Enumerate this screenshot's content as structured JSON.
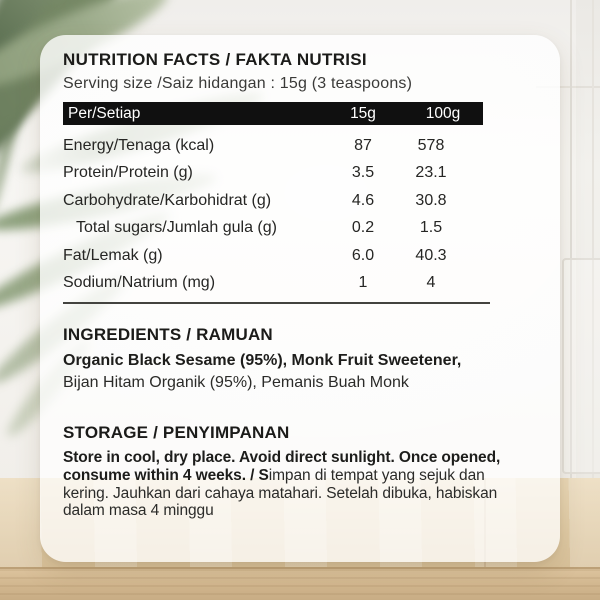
{
  "nutrition_facts": {
    "title": "NUTRITION FACTS / FAKTA NUTRISI",
    "serving_size": "Serving size /Saiz hidangan : 15g (3 teaspoons)",
    "table": {
      "header": {
        "per": "Per/Setiap",
        "col_15g": "15g",
        "col_100g": "100g"
      },
      "rows": [
        {
          "label": "Energy/Tenaga (kcal)",
          "per_15g": "87",
          "per_100g": "578"
        },
        {
          "label": "Protein/Protein (g)",
          "per_15g": "3.5",
          "per_100g": "23.1"
        },
        {
          "label": "Carbohydrate/Karbohidrat (g)",
          "per_15g": "4.6",
          "per_100g": "30.8"
        },
        {
          "label": "Total sugars/Jumlah gula (g)",
          "per_15g": "0.2",
          "per_100g": "1.5"
        },
        {
          "label": "Fat/Lemak (g)",
          "per_15g": "6.0",
          "per_100g": "40.3"
        },
        {
          "label": "Sodium/Natrium (mg)",
          "per_15g": "1",
          "per_100g": "4"
        }
      ]
    }
  },
  "ingredients": {
    "heading": "INGREDIENTS / RAMUAN",
    "line1_bold": "Organic Black Sesame (95%), Monk Fruit Sweetener,",
    "line2_regular": "Bijan Hitam Organik (95%), Pemanis Buah Monk"
  },
  "storage": {
    "heading": "STORAGE / PENYIMPANAN",
    "lines": [
      {
        "bold": "Store in cool, dry place. Avoid direct sunlight. Once opened,",
        "regular": ""
      },
      {
        "bold": "consume within 4 weeks. / S",
        "regular": "impan di tempat yang sejuk dan"
      },
      {
        "bold": "",
        "regular": "kering. Jauhkan dari cahaya matahari. Setelah dibuka, habiskan"
      },
      {
        "bold": "",
        "regular": "dalam masa 4 minggu"
      }
    ]
  },
  "colors": {
    "bar_background": "#101010",
    "bar_text": "#ffffff",
    "body_text": "#262624",
    "card_background": "rgba(255,255,255,0.74)",
    "wood": "#e0cba6",
    "wall": "#f4f2ee",
    "plant_green": "#8b9d7b"
  }
}
